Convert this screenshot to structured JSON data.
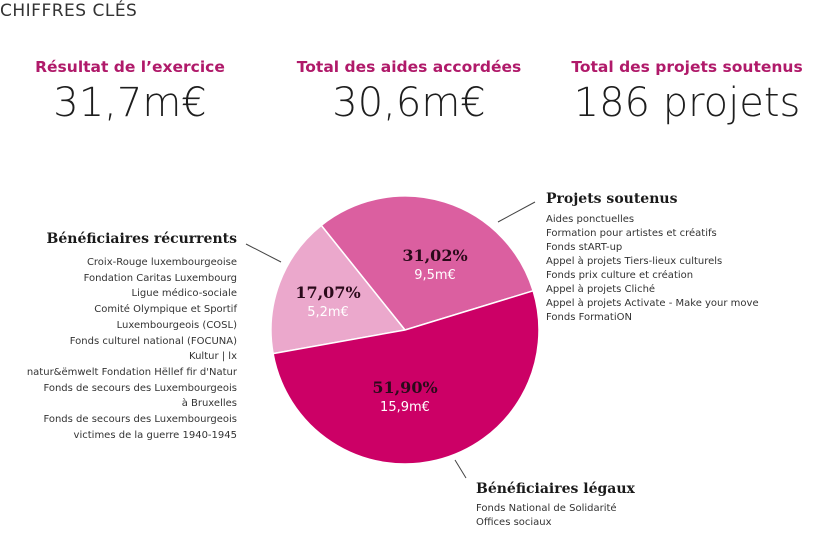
{
  "section_title": "CHIFFRES CLÉS",
  "kpis": [
    {
      "label": "Résultat de l’exercice",
      "value": "31,7m€"
    },
    {
      "label": "Total des aides accordées",
      "value": "30,6m€"
    },
    {
      "label": "Total des projets soutenus",
      "value": "186 projets"
    }
  ],
  "groups": {
    "recurrents": {
      "title": "Bénéficiaires récurrents",
      "items": [
        "Croix-Rouge luxembourgeoise",
        "Fondation Caritas Luxembourg",
        "Ligue médico-sociale",
        "Comité Olympique et Sportif",
        "Luxembourgeois (COSL)",
        "Fonds culturel national (FOCUNA)",
        "Kultur | lx",
        "natur&ëmwelt Fondation Hëllef fir d'Natur",
        "Fonds de secours des Luxembourgeois",
        "à Bruxelles",
        "Fonds de secours des Luxembourgeois",
        "victimes de la guerre 1940-1945"
      ]
    },
    "projets": {
      "title": "Projets soutenus",
      "items": [
        "Aides ponctuelles",
        "Formation pour artistes et créatifs",
        "Fonds stART-up",
        "Appel à projets Tiers-lieux culturels",
        "Fonds prix culture et création",
        "Appel à projets Cliché",
        "Appel à projets Activate - Make your move",
        "Fonds FormatiON"
      ]
    },
    "legaux": {
      "title": "Bénéficiaires légaux",
      "items": [
        "Fonds National de Solidarité",
        "Offices sociaux"
      ]
    }
  },
  "colors": {
    "accent": "#b01a6a",
    "slice_projets": "#db5fa0",
    "slice_recurrents": "#eba8cc",
    "slice_legaux": "#cc0066"
  },
  "chart_data": {
    "type": "pie",
    "title": "",
    "categories": [
      "Projets soutenus",
      "Bénéficiaires récurrents",
      "Bénéficiaires légaux"
    ],
    "values": [
      31.02,
      17.07,
      51.9
    ],
    "labels": [
      {
        "pct": "31,02%",
        "amount": "9,5m€"
      },
      {
        "pct": "17,07%",
        "amount": "5,2m€"
      },
      {
        "pct": "51,90%",
        "amount": "15,9m€"
      }
    ],
    "amounts_meur": [
      9.5,
      5.2,
      15.9
    ],
    "unit": "%",
    "colors": [
      "#db5fa0",
      "#eba8cc",
      "#cc0066"
    ]
  }
}
